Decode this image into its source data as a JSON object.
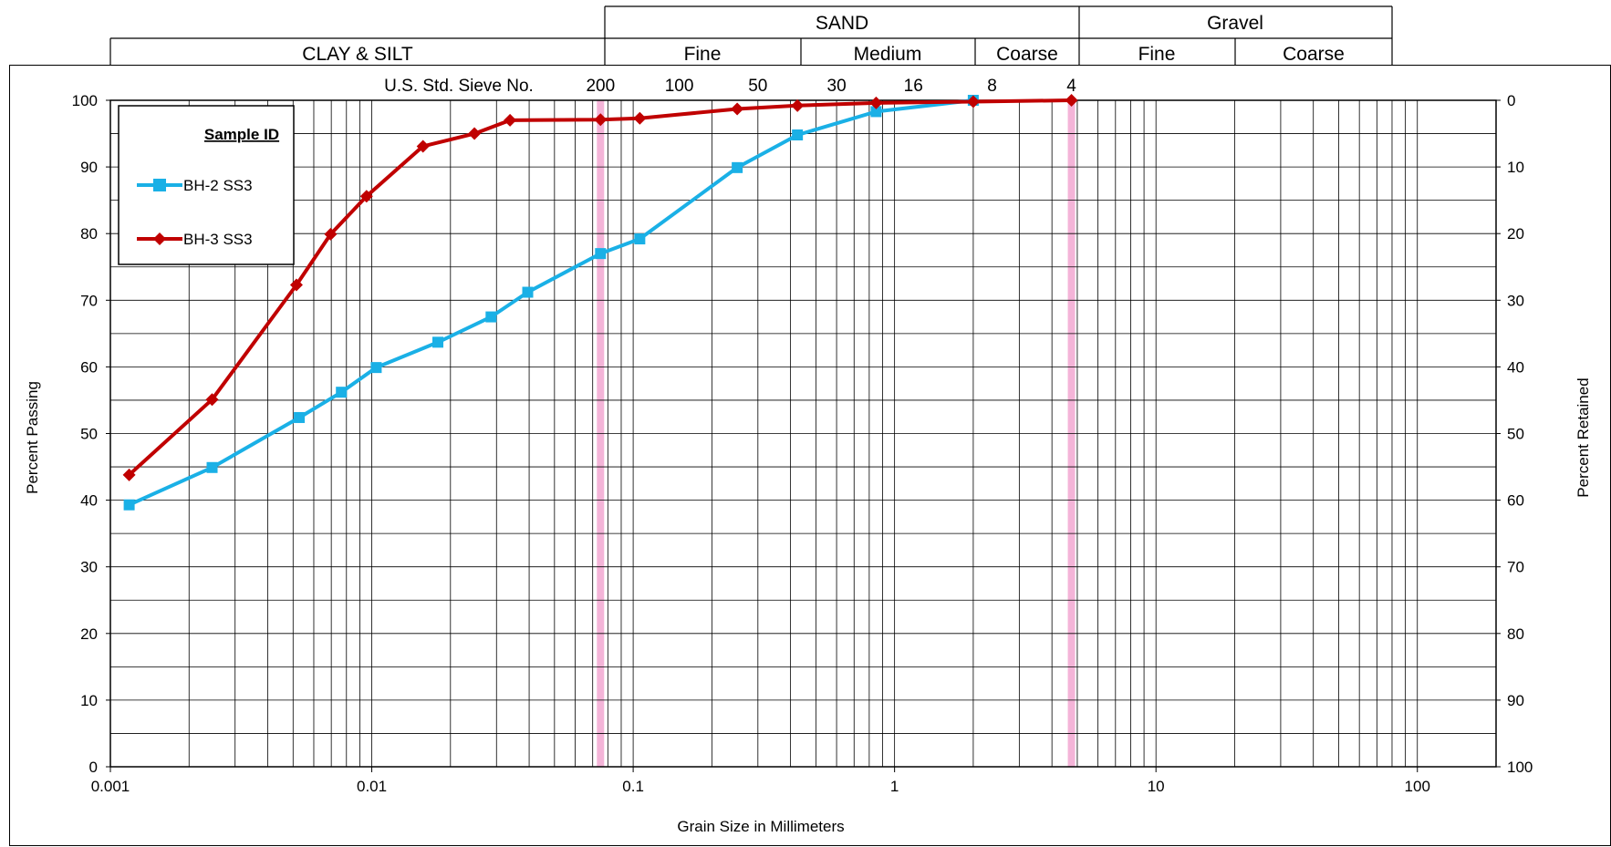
{
  "header": {
    "clay_silt": "CLAY & SILT",
    "sand": "SAND",
    "gravel": "Gravel",
    "sand_fine": "Fine",
    "sand_medium": "Medium",
    "sand_coarse": "Coarse",
    "gravel_fine": "Fine",
    "gravel_coarse": "Coarse"
  },
  "sieve": {
    "label": "U.S. Std. Sieve No.",
    "marks": [
      {
        "label": "200",
        "size": 0.075
      },
      {
        "label": "100",
        "size": 0.15
      },
      {
        "label": "50",
        "size": 0.3
      },
      {
        "label": "30",
        "size": 0.6
      },
      {
        "label": "16",
        "size": 1.18
      },
      {
        "label": "8",
        "size": 2.36
      },
      {
        "label": "4",
        "size": 4.75
      }
    ]
  },
  "legend": {
    "title": "Sample ID"
  },
  "colors": {
    "bh2": "#1ab0e6",
    "bh3": "#c00000",
    "boundary": "#f4b4d8",
    "grid": "#000000"
  },
  "chart_data": {
    "type": "line",
    "xlabel": "Grain Size in Millimeters",
    "ylabel": "Percent Passing",
    "y2label": "Percent Retained",
    "xscale": "log",
    "xlim": [
      0.001,
      200
    ],
    "ylim": [
      0,
      100
    ],
    "y2lim": [
      100,
      0
    ],
    "x_tick_labels": [
      "0.001",
      "0.01",
      "0.1",
      "1",
      "10",
      "100"
    ],
    "y_tick_labels": [
      "0",
      "10",
      "20",
      "30",
      "40",
      "50",
      "60",
      "70",
      "80",
      "90",
      "100"
    ],
    "y2_tick_labels": [
      "100",
      "90",
      "80",
      "70",
      "60",
      "50",
      "40",
      "30",
      "20",
      "10",
      "0"
    ],
    "boundaries": [
      0.075,
      4.75
    ],
    "grid": true,
    "legend_position": "top-left",
    "series": [
      {
        "name": "BH-2 SS3",
        "marker": "square",
        "color": "#1ab0e6",
        "x": [
          0.00118,
          0.00245,
          0.00528,
          0.00765,
          0.0104,
          0.0179,
          0.0286,
          0.0395,
          0.075,
          0.106,
          0.25,
          0.425,
          0.85,
          2.0
        ],
        "y": [
          39.3,
          44.9,
          52.4,
          56.2,
          59.9,
          63.7,
          67.5,
          71.2,
          77.0,
          79.2,
          89.9,
          94.8,
          98.3,
          100
        ]
      },
      {
        "name": "BH-3 SS3",
        "marker": "diamond",
        "color": "#c00000",
        "x": [
          0.00118,
          0.00245,
          0.00515,
          0.00696,
          0.00955,
          0.0157,
          0.0247,
          0.0338,
          0.075,
          0.106,
          0.25,
          0.425,
          0.85,
          2.0,
          4.75
        ],
        "y": [
          43.8,
          55.1,
          72.3,
          79.9,
          85.6,
          93.1,
          95.0,
          97.0,
          97.1,
          97.3,
          98.7,
          99.2,
          99.6,
          99.8,
          100
        ]
      }
    ]
  }
}
